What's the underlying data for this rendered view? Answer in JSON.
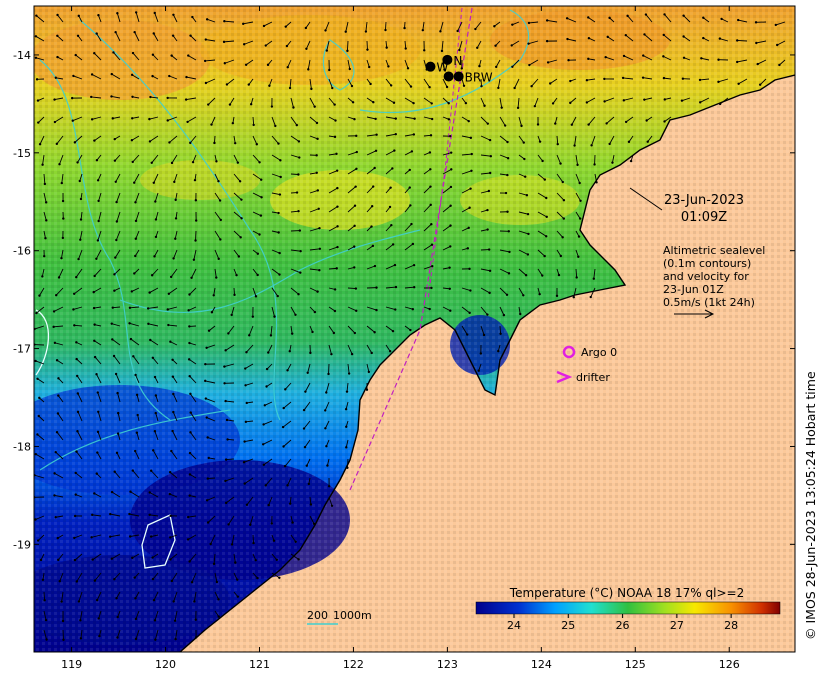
{
  "map": {
    "date": "23-Jun-2023",
    "time": "01:09Z",
    "altimetry_lines": [
      "Altimetric sealevel",
      "(0.1m contours)",
      "and velocity for",
      "23-Jun 01Z",
      "0.5m/s (1kt 24h)"
    ],
    "legend": {
      "argo_label": "Argo 0",
      "drifter_label": "drifter",
      "argo_color": "#e020e0",
      "drifter_color": "#e020e0"
    },
    "stations": [
      {
        "name": "W",
        "lon": 122.82,
        "lat": -14.12
      },
      {
        "name": "N",
        "lon": 123.0,
        "lat": -14.05
      },
      {
        "name": "BRW",
        "lon": 123.12,
        "lat": -14.22
      }
    ],
    "colorbar": {
      "title": "Temperature (°C) NOAA 18 17% ql>=2",
      "min": 23.3,
      "max": 28.9,
      "ticks": [
        "24",
        "25",
        "26",
        "27",
        "28"
      ]
    },
    "depth_scale": {
      "label_a": "200",
      "label_b": "1000m"
    },
    "x_ticks": [
      "119",
      "120",
      "121",
      "122",
      "123",
      "124",
      "125",
      "126"
    ],
    "y_ticks": [
      "-14",
      "-15",
      "-16",
      "-17",
      "-18",
      "-19"
    ],
    "lon_range": [
      118.6,
      126.7
    ],
    "lat_range": [
      -13.5,
      -20.1
    ],
    "credit": "© IMOS 28-Jun-2023 13:05:24 Hobart time",
    "colors": {
      "land": "#fcc99a",
      "coast": "#000000",
      "contour": "#40d0d0",
      "track": "#c020c0"
    }
  }
}
